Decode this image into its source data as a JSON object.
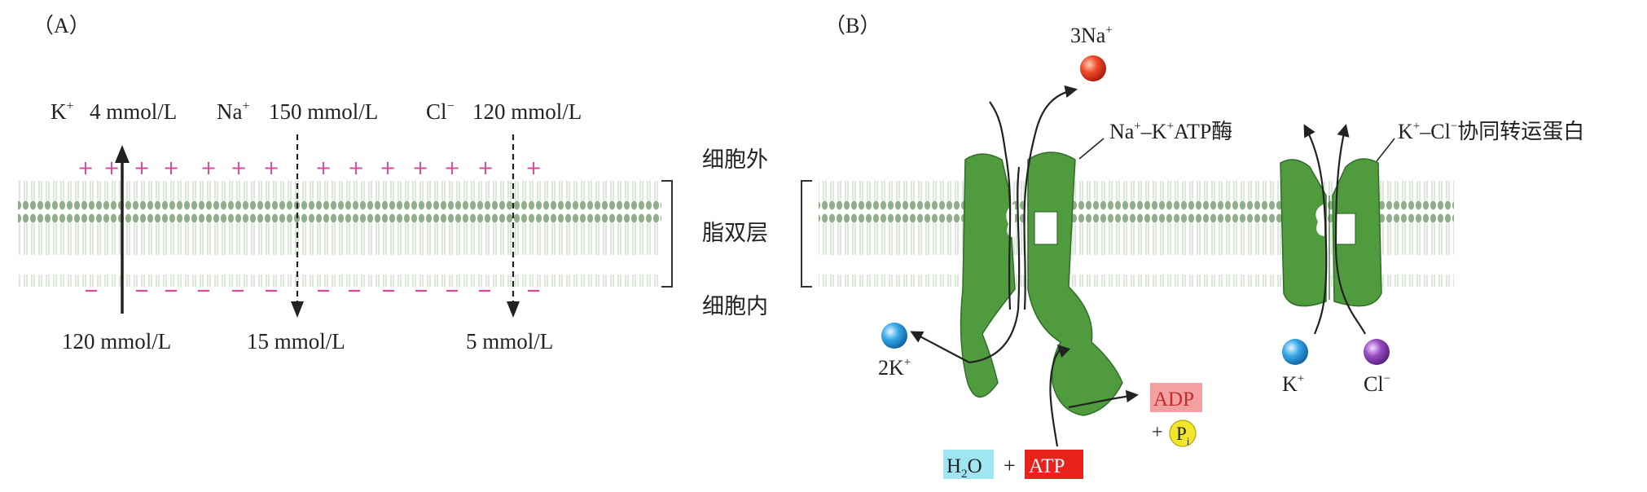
{
  "panel_a": {
    "label": "（A）",
    "ions": [
      {
        "symbol": "K",
        "charge": "+",
        "outside": "4 mmol/L",
        "inside": "120 mmol/L"
      },
      {
        "symbol": "Na",
        "charge": "+",
        "outside": "150 mmol/L",
        "inside": "15 mmol/L"
      },
      {
        "symbol": "Cl",
        "charge": "−",
        "outside": "120 mmol/L",
        "inside": "5 mmol/L"
      }
    ],
    "plus_sign": "+",
    "minus_sign": "−",
    "region_labels": {
      "outside": "细胞外",
      "bilayer": "脂双层",
      "inside": "细胞内"
    }
  },
  "panel_b": {
    "label": "（B）",
    "na_k_atpase": {
      "label_prefix": "Na",
      "label_mid": "–K",
      "label_suffix": "ATP酶",
      "charge": "+",
      "out_ion": "3Na",
      "in_ion": "2K"
    },
    "cotransporter": {
      "label_prefix": "K",
      "label_mid": "–Cl",
      "label_suffix": "协同转运蛋白",
      "ion1": "K",
      "ion1_charge": "+",
      "ion2": "Cl",
      "ion2_charge": "−"
    },
    "reaction": {
      "water_h": "H",
      "water_sub": "2",
      "water_o": "O",
      "plus": "+",
      "atp": "ATP",
      "adp": "ADP",
      "pi_plus": "+",
      "pi_p": "P",
      "pi_sub": "i"
    }
  },
  "colors": {
    "membrane": "#8fb08a",
    "protein": "#4f9b3e",
    "protein_edge": "#2f6e28",
    "na_ball": "#e8321e",
    "k_ball": "#2a9fe0",
    "cl_ball": "#8a3fb0",
    "atp_box": "#e8231e",
    "adp_box": "#f3a0a0",
    "h2o_box": "#9fe6f2",
    "pi_ball": "#f2e62a",
    "plus_sign": "#d9489a"
  }
}
